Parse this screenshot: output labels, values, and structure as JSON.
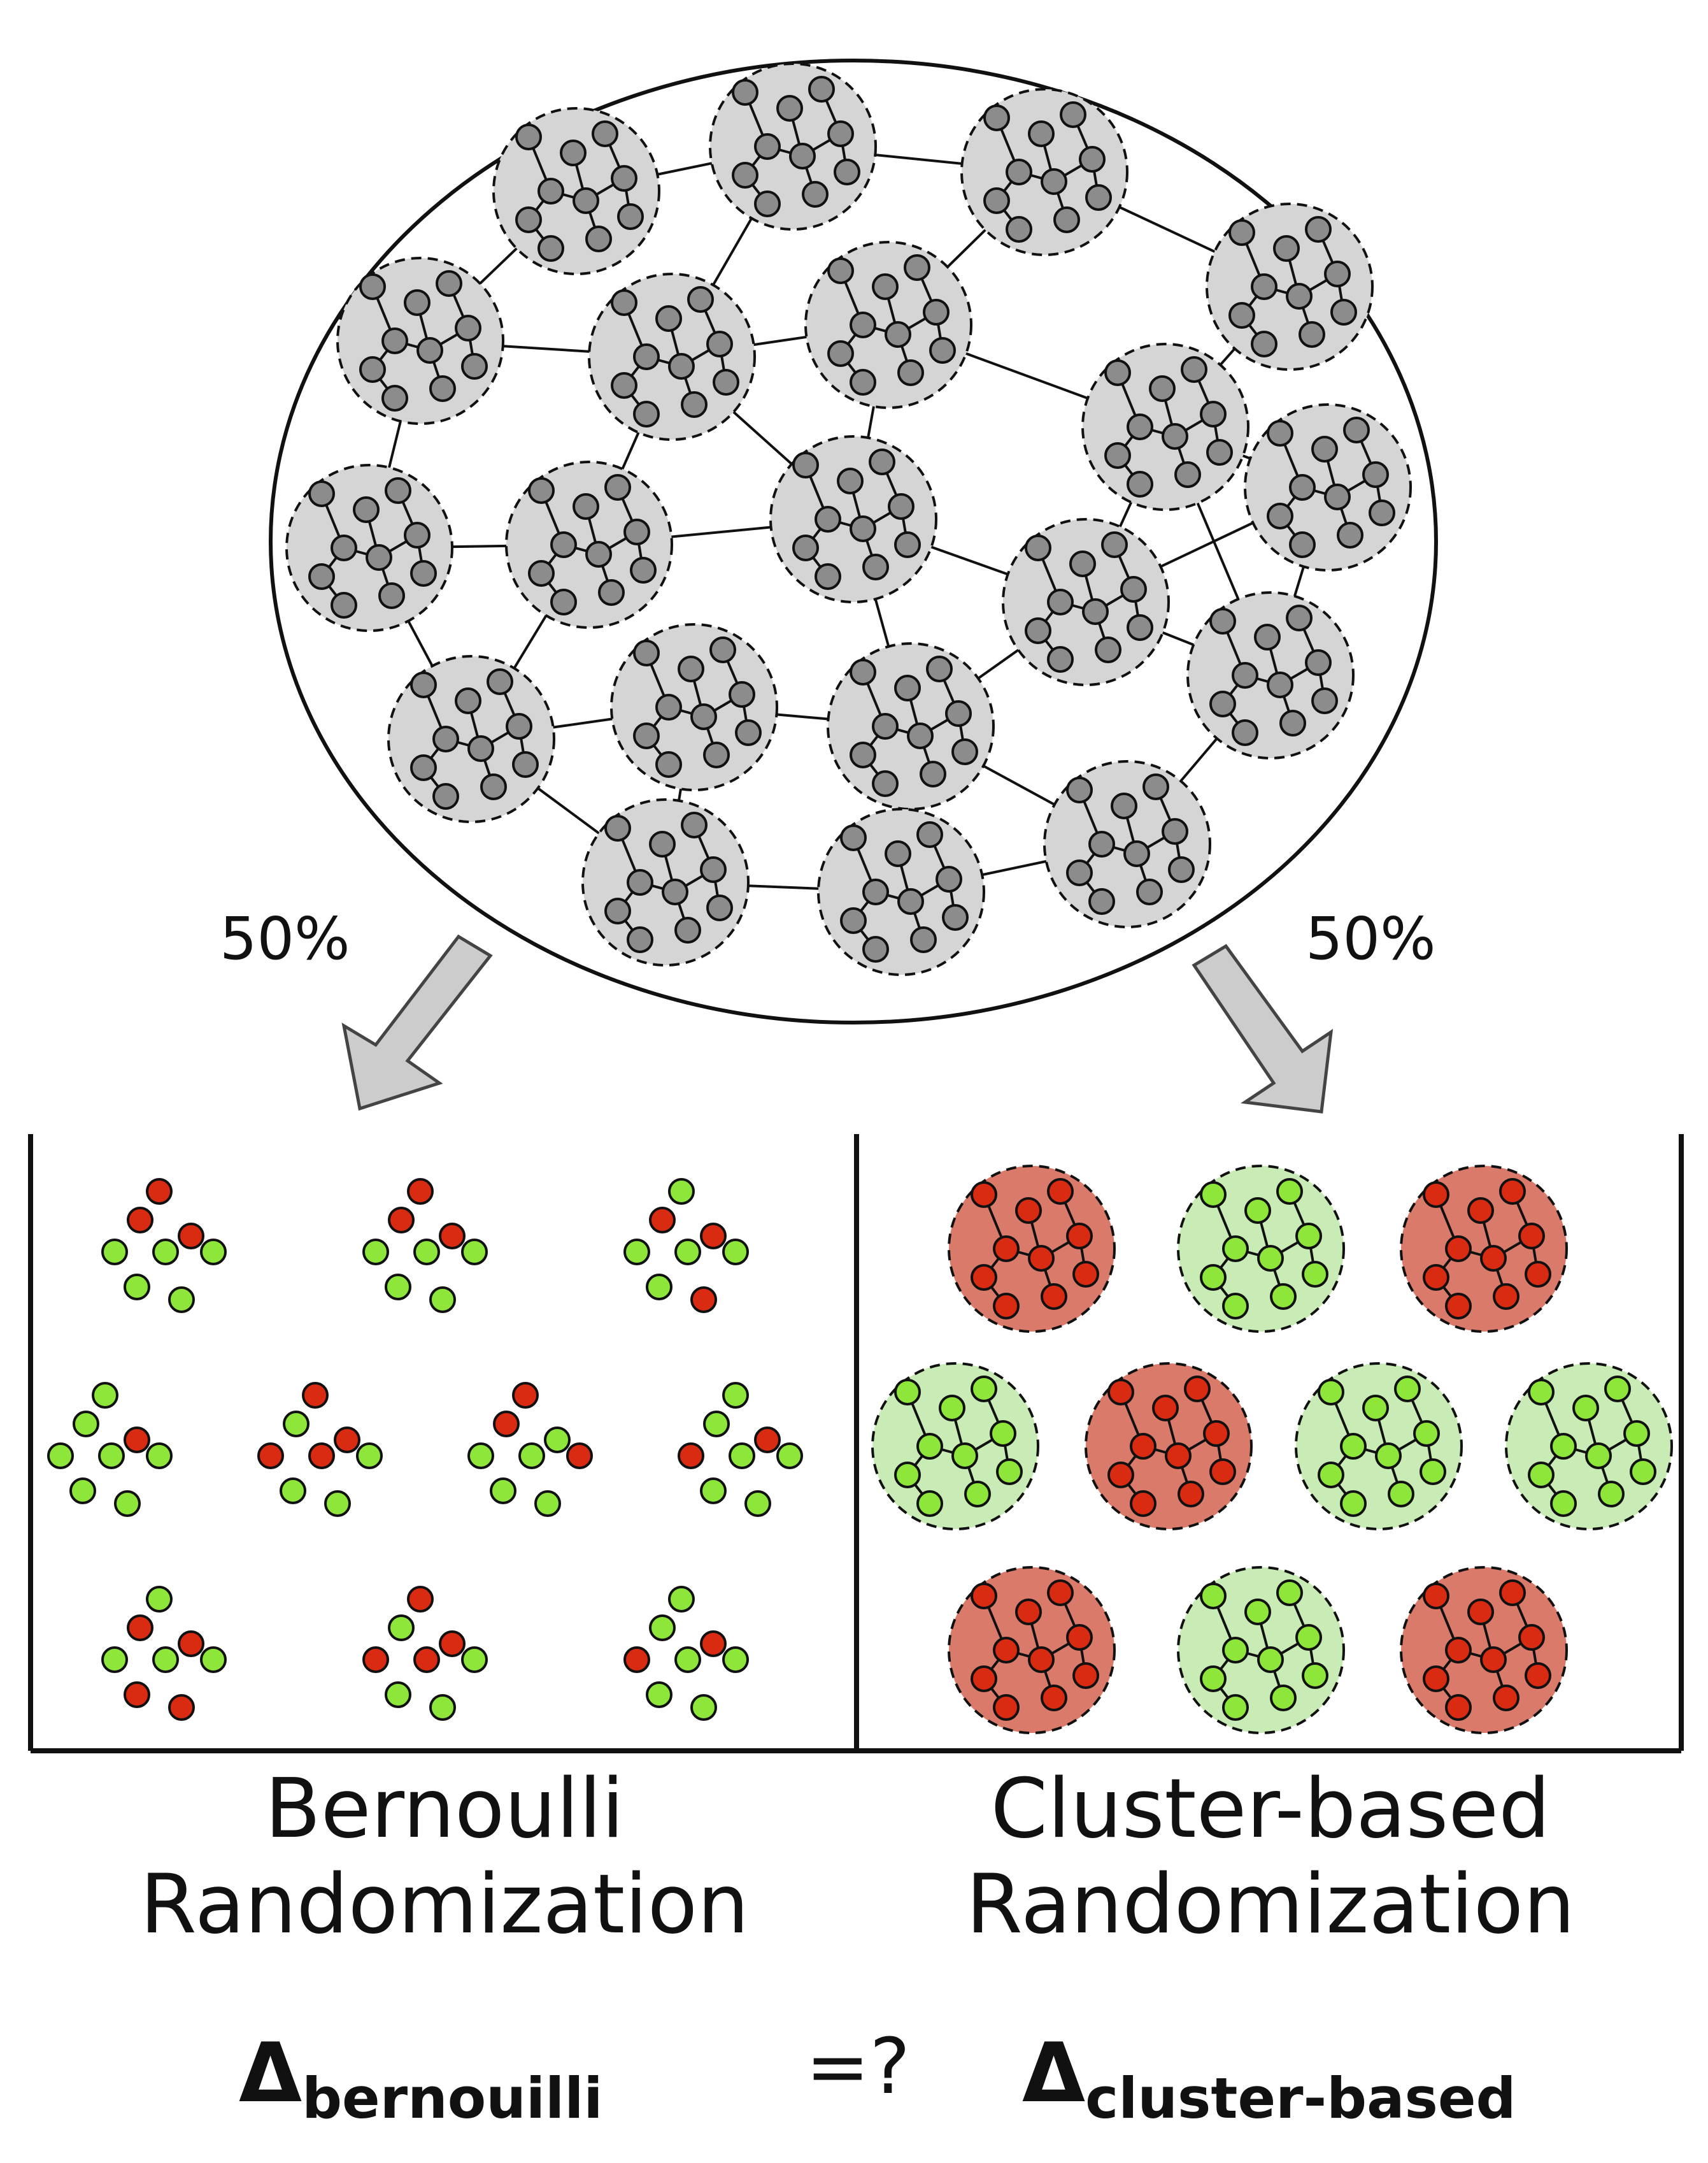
{
  "top": {
    "split_left": "50%",
    "split_right": "50%"
  },
  "panels": {
    "left_title_line1": "Bernoulli",
    "left_title_line2": "Randomization",
    "right_title_line1": "Cluster-based",
    "right_title_line2": "Randomization"
  },
  "formula": {
    "delta_symbol": "Δ",
    "left_subscript": "bernouilli",
    "comparator": "=?",
    "right_subscript": "cluster-based"
  },
  "colors": {
    "node_gray": "#8c8c8c",
    "cluster_gray": "#d5d5d5",
    "treated_red": "#d92b12",
    "control_green": "#8ee63a",
    "cluster_red": "#d97a6a",
    "cluster_green": "#c9ebb5"
  },
  "bernoulli_groups": [
    [
      "r",
      "r",
      "g",
      "g",
      "g",
      "g",
      "g",
      "r"
    ],
    [
      "r",
      "r",
      "g",
      "g",
      "g",
      "g",
      "g",
      "r"
    ],
    [
      "r",
      "r",
      "g",
      "g",
      "g",
      "g",
      "r",
      "g"
    ],
    [
      "g",
      "r",
      "g",
      "g",
      "g",
      "g",
      "g",
      "g"
    ],
    [
      "g",
      "r",
      "r",
      "r",
      "g",
      "g",
      "g",
      "r"
    ],
    [
      "r",
      "g",
      "g",
      "g",
      "r",
      "g",
      "g",
      "r"
    ],
    [
      "g",
      "r",
      "r",
      "g",
      "g",
      "g",
      "g",
      "g"
    ],
    [
      "r",
      "r",
      "g",
      "g",
      "g",
      "r",
      "r",
      "g"
    ],
    [
      "g",
      "r",
      "r",
      "r",
      "g",
      "g",
      "g",
      "r"
    ],
    [
      "g",
      "r",
      "r",
      "g",
      "g",
      "g",
      "g",
      "g"
    ]
  ],
  "cluster_assignment": [
    "red",
    "green",
    "red",
    "green",
    "red",
    "green",
    "green",
    "red",
    "green",
    "red"
  ]
}
